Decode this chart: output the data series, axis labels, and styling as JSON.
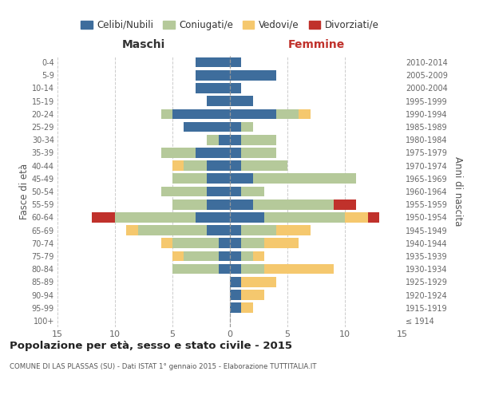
{
  "age_groups": [
    "100+",
    "95-99",
    "90-94",
    "85-89",
    "80-84",
    "75-79",
    "70-74",
    "65-69",
    "60-64",
    "55-59",
    "50-54",
    "45-49",
    "40-44",
    "35-39",
    "30-34",
    "25-29",
    "20-24",
    "15-19",
    "10-14",
    "5-9",
    "0-4"
  ],
  "birth_years": [
    "≤ 1914",
    "1915-1919",
    "1920-1924",
    "1925-1929",
    "1930-1934",
    "1935-1939",
    "1940-1944",
    "1945-1949",
    "1950-1954",
    "1955-1959",
    "1960-1964",
    "1965-1969",
    "1970-1974",
    "1975-1979",
    "1980-1984",
    "1985-1989",
    "1990-1994",
    "1995-1999",
    "2000-2004",
    "2005-2009",
    "2010-2014"
  ],
  "colors": {
    "celibi": "#3e6d9c",
    "coniugati": "#b5c99a",
    "vedovi": "#f5c86e",
    "divorziati": "#c0312b"
  },
  "maschi": {
    "celibi": [
      0,
      0,
      0,
      0,
      1,
      1,
      1,
      2,
      3,
      2,
      2,
      2,
      2,
      3,
      1,
      4,
      5,
      2,
      3,
      3,
      3
    ],
    "coniugati": [
      0,
      0,
      0,
      0,
      4,
      3,
      4,
      6,
      7,
      3,
      4,
      3,
      2,
      3,
      1,
      0,
      1,
      0,
      0,
      0,
      0
    ],
    "vedovi": [
      0,
      0,
      0,
      0,
      0,
      1,
      1,
      1,
      0,
      0,
      0,
      0,
      1,
      0,
      0,
      0,
      0,
      0,
      0,
      0,
      0
    ],
    "divorziati": [
      0,
      0,
      0,
      0,
      0,
      0,
      0,
      0,
      2,
      0,
      0,
      0,
      0,
      0,
      0,
      0,
      0,
      0,
      0,
      0,
      0
    ]
  },
  "femmine": {
    "celibi": [
      0,
      1,
      1,
      1,
      1,
      1,
      1,
      1,
      3,
      2,
      1,
      2,
      1,
      1,
      1,
      1,
      4,
      2,
      1,
      4,
      1
    ],
    "coniugati": [
      0,
      0,
      0,
      0,
      2,
      1,
      2,
      3,
      7,
      7,
      2,
      9,
      4,
      3,
      3,
      1,
      2,
      0,
      0,
      0,
      0
    ],
    "vedovi": [
      0,
      1,
      2,
      3,
      6,
      1,
      3,
      3,
      2,
      0,
      0,
      0,
      0,
      0,
      0,
      0,
      1,
      0,
      0,
      0,
      0
    ],
    "divorziati": [
      0,
      0,
      0,
      0,
      0,
      0,
      0,
      0,
      1,
      2,
      0,
      0,
      0,
      0,
      0,
      0,
      0,
      0,
      0,
      0,
      0
    ]
  },
  "title": "Popolazione per età, sesso e stato civile - 2015",
  "subtitle": "COMUNE DI LAS PLASSAS (SU) - Dati ISTAT 1° gennaio 2015 - Elaborazione TUTTITALIA.IT",
  "ylabel_left": "Fasce di età",
  "ylabel_right": "Anni di nascita",
  "xlabel_left": "Maschi",
  "xlabel_right": "Femmine",
  "xlim": 15,
  "legend_labels": [
    "Celibi/Nubili",
    "Coniugati/e",
    "Vedovi/e",
    "Divorziati/e"
  ],
  "grid_color": "#cccccc",
  "spine_color": "#cccccc"
}
